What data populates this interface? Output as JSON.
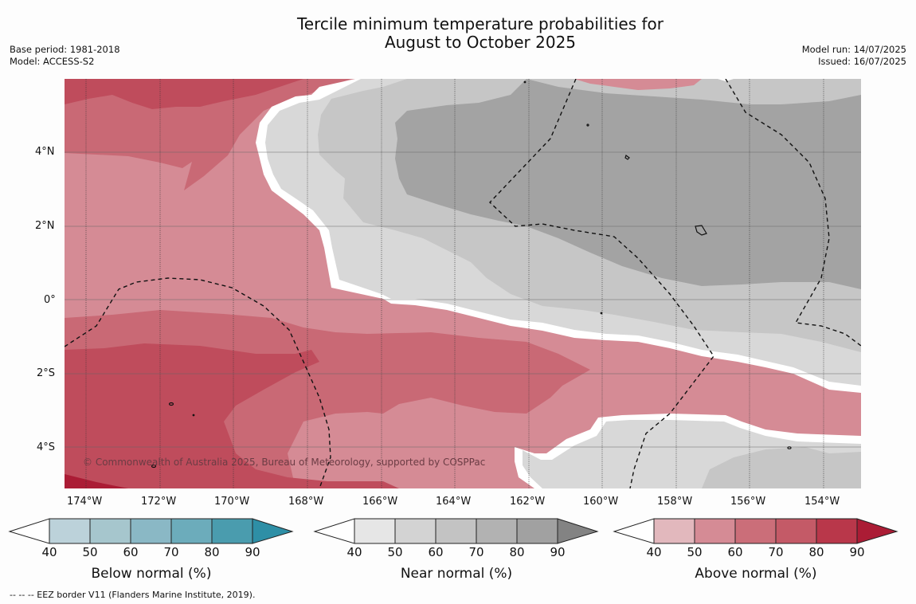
{
  "header": {
    "title_line1": "Tercile minimum temperature probabilities for",
    "title_line2": "August to October 2025",
    "base_period": "Base period: 1981-2018",
    "model": "Model: ACCESS-S2",
    "model_run": "Model run: 14/07/2025",
    "issued": "Issued: 16/07/2025"
  },
  "map": {
    "lon_labels": [
      "174°W",
      "172°W",
      "170°W",
      "168°W",
      "166°W",
      "164°W",
      "162°W",
      "160°W",
      "158°W",
      "156°W",
      "154°W"
    ],
    "lat_labels": [
      "4°N",
      "2°N",
      "0°",
      "2°S",
      "4°S"
    ],
    "copyright": "© Commonwealth of Australia 2025, Bureau of Meteorology, supported by COSPPac",
    "region_colors": {
      "above_50": "#d58b95",
      "above_60": "#c96975",
      "above_70": "#bf4c5c",
      "near_50": "#d8d8d8",
      "near_60": "#c6c6c6",
      "near_70": "#a3a3a3",
      "white_band": "#ffffff"
    }
  },
  "colorbars": [
    {
      "title": "Below normal (%)",
      "labels": [
        "40",
        "50",
        "60",
        "70",
        "80",
        "90"
      ],
      "colors": [
        "#ffffff",
        "#bcd2da",
        "#a6c6cd",
        "#8ab8c5",
        "#6cacbb",
        "#4a9cae",
        "#2e8fa6"
      ]
    },
    {
      "title": "Near normal (%)",
      "labels": [
        "40",
        "50",
        "60",
        "70",
        "80",
        "90"
      ],
      "colors": [
        "#ffffff",
        "#e6e6e6",
        "#d3d3d3",
        "#c3c3c3",
        "#b2b2b2",
        "#a1a1a1",
        "#838383"
      ]
    },
    {
      "title": "Above normal (%)",
      "labels": [
        "40",
        "50",
        "60",
        "70",
        "80",
        "90"
      ],
      "colors": [
        "#ffffff",
        "#e2b8bd",
        "#d58b95",
        "#cb6e79",
        "#c45a67",
        "#b9374a",
        "#ab1c35"
      ]
    }
  ],
  "footnote": "--  --  -- EEZ border V11 (Flanders Marine Institute, 2019)."
}
